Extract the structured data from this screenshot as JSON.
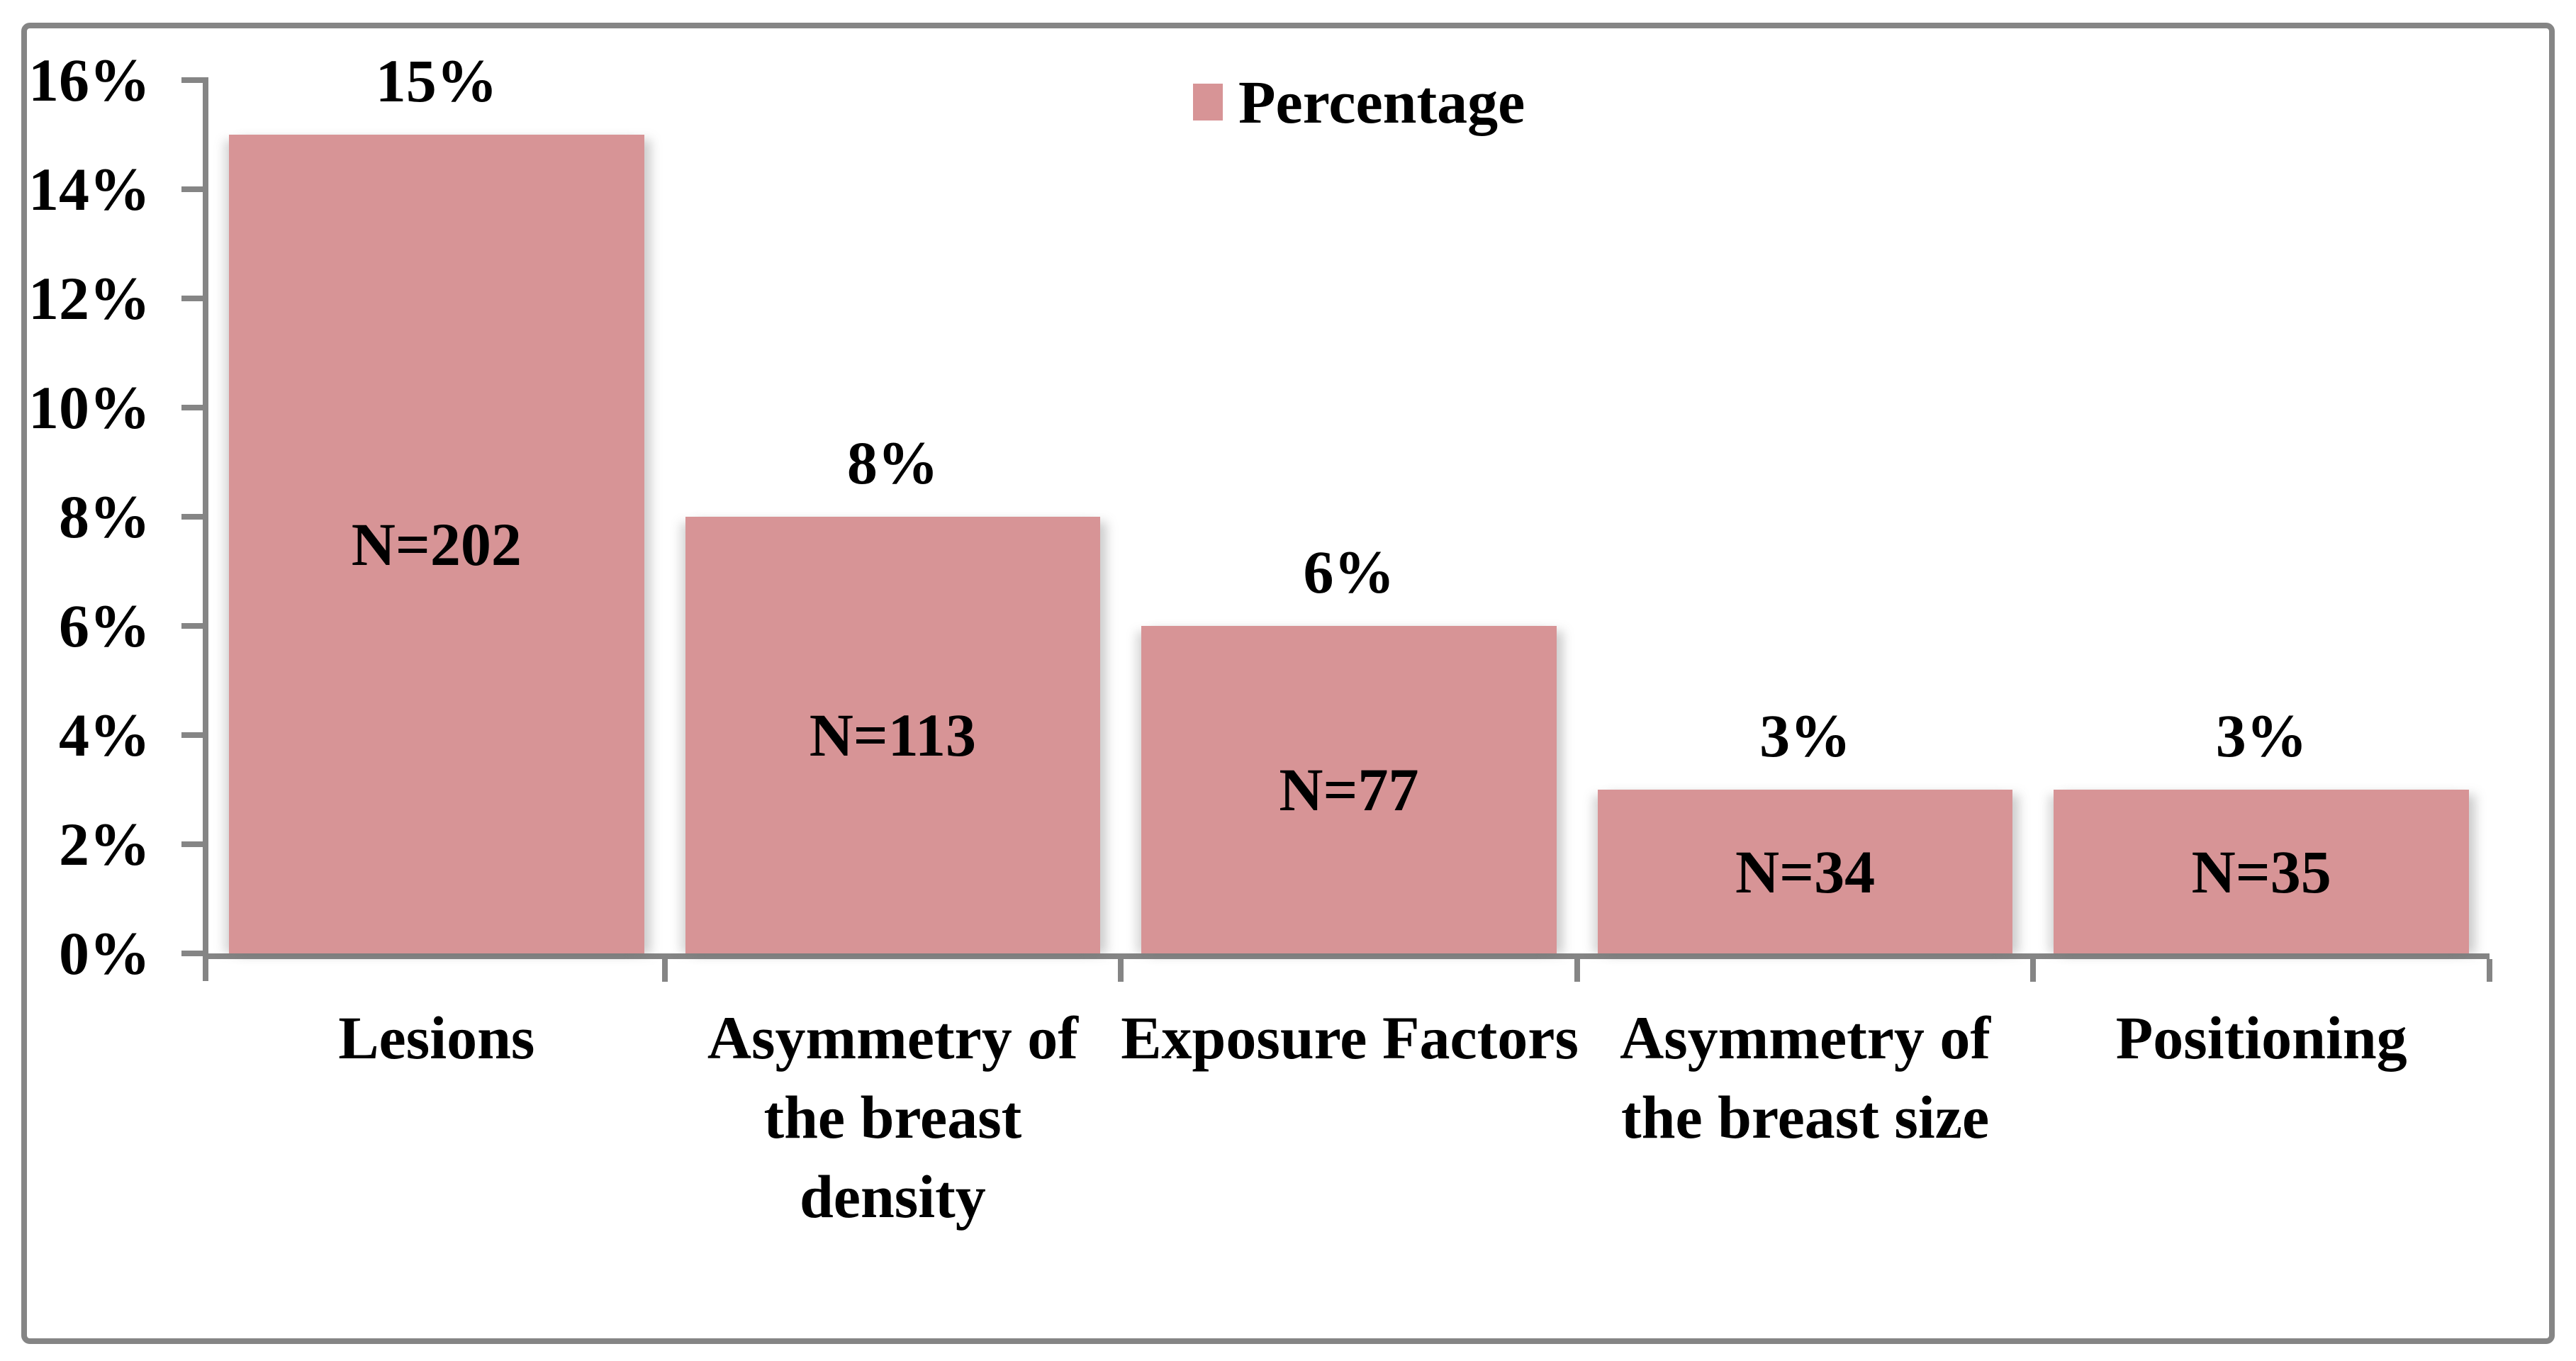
{
  "chart_data": {
    "type": "bar",
    "title": "",
    "xlabel": "",
    "ylabel": "",
    "categories": [
      "Lesions",
      "Asymmetry of the breast density",
      "Exposure Factors",
      "Asymmetry of the breast size",
      "Positioning"
    ],
    "category_label_lines": [
      [
        "Lesions"
      ],
      [
        "Asymmetry of",
        "the breast",
        "density"
      ],
      [
        "Exposure Factors"
      ],
      [
        "Asymmetry of",
        "the breast size"
      ],
      [
        "Positioning"
      ]
    ],
    "series": [
      {
        "name": "Percentage",
        "values": [
          15,
          8,
          6,
          3,
          3
        ]
      }
    ],
    "value_labels": [
      "15%",
      "8%",
      "6%",
      "3%",
      "3%"
    ],
    "bar_annotations": [
      "N=202",
      "N=113",
      "N=77",
      "N=34",
      "N=35"
    ],
    "sample_sizes": [
      202,
      113,
      77,
      34,
      35
    ],
    "ylim": [
      0,
      16
    ],
    "y_tick_step_percent": 2,
    "y_tick_labels_bottom_to_top": [
      "0%",
      "2%",
      "4%",
      "6%",
      "8%",
      "10%",
      "12%",
      "14%",
      "16%"
    ],
    "grid": false,
    "legend_position": "top-center",
    "colors": {
      "bar_fill": "#D79496",
      "axis": "#858585",
      "text": "#000000",
      "background": "#FFFFFF"
    }
  },
  "legend": {
    "label": "Percentage",
    "swatch_color": "#D79496"
  }
}
